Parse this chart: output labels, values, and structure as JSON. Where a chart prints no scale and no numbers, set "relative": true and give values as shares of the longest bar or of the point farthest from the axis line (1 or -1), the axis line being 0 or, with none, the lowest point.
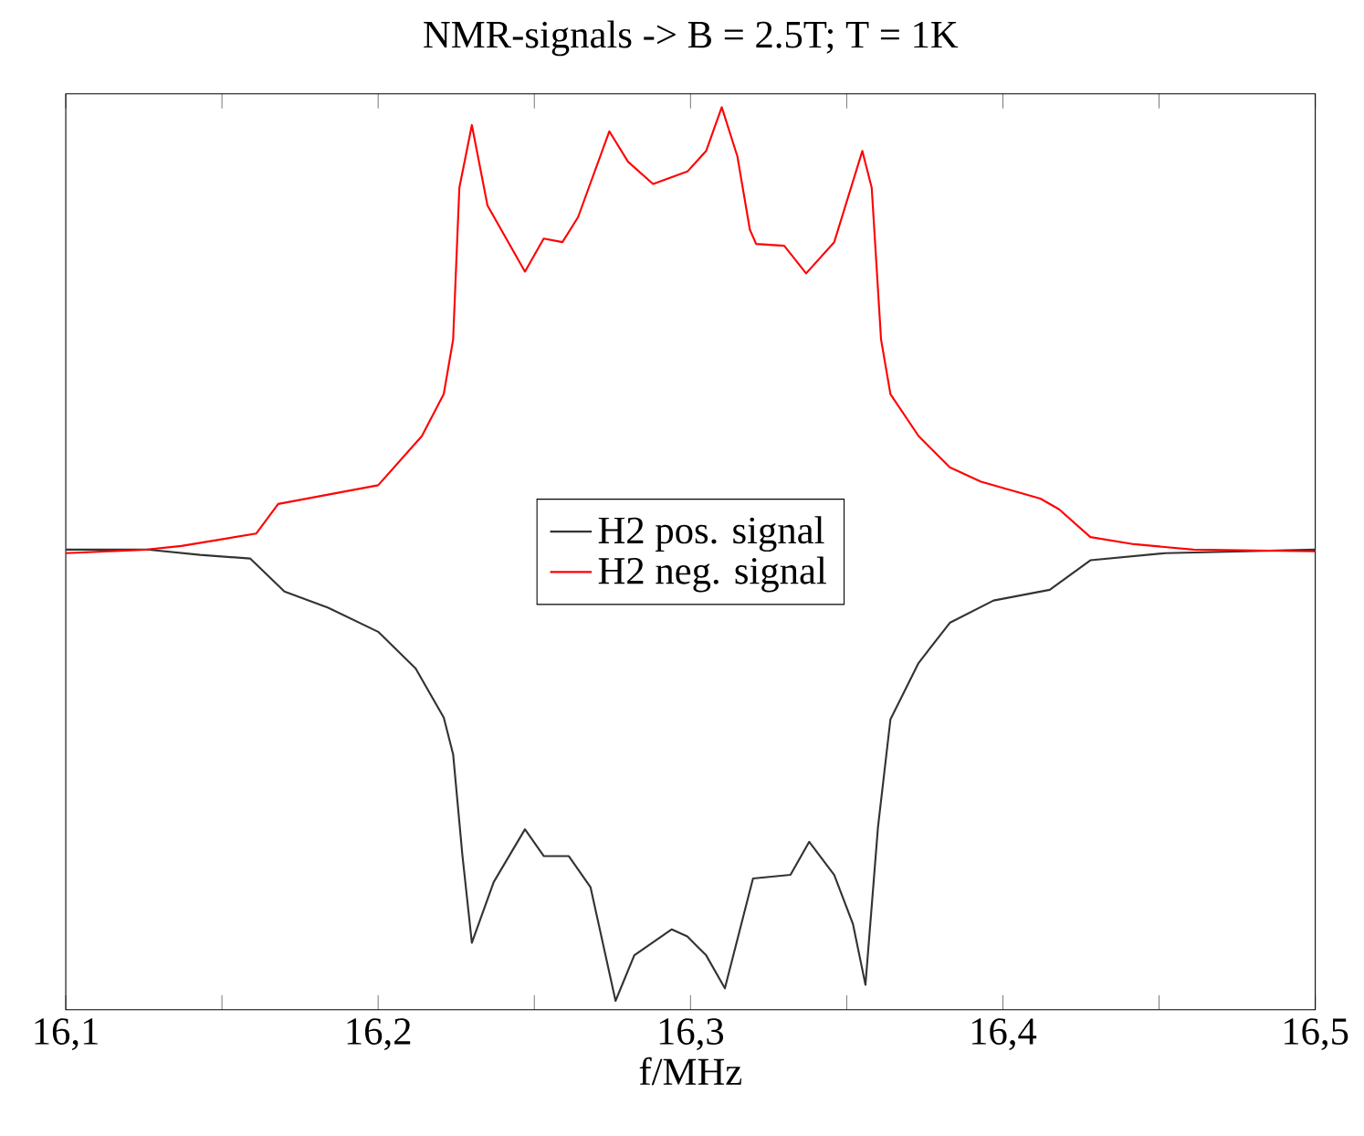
{
  "chart_data": {
    "type": "line",
    "title": "NMR-signals  -> B = 2.5T; T = 1K",
    "xlabel": "f/MHz",
    "relative": true,
    "xlim": [
      16.1,
      16.5
    ],
    "xticks": [
      {
        "value": 16.1,
        "label": "16,1"
      },
      {
        "value": 16.15,
        "label": null
      },
      {
        "value": 16.2,
        "label": "16,2"
      },
      {
        "value": 16.25,
        "label": null
      },
      {
        "value": 16.3,
        "label": "16,3"
      },
      {
        "value": 16.35,
        "label": null
      },
      {
        "value": 16.4,
        "label": "16,4"
      },
      {
        "value": 16.45,
        "label": null
      },
      {
        "value": 16.5,
        "label": "16,5"
      }
    ],
    "tick_labels": "x",
    "grid": false,
    "legend": "center",
    "marker": "none",
    "line_style": "solid",
    "series": [
      {
        "name": "H2 pos. signal",
        "color": "#333333",
        "x": [
          16.1,
          16.126,
          16.143,
          16.159,
          16.17,
          16.184,
          16.2,
          16.212,
          16.221,
          16.224,
          16.227,
          16.23,
          16.237,
          16.247,
          16.253,
          16.261,
          16.268,
          16.276,
          16.282,
          16.294,
          16.299,
          16.305,
          16.311,
          16.32,
          16.332,
          16.338,
          16.346,
          16.352,
          16.356,
          16.36,
          16.364,
          16.373,
          16.383,
          16.397,
          16.415,
          16.428,
          16.452,
          16.5
        ],
        "values": [
          0.505,
          0.505,
          0.499,
          0.495,
          0.458,
          0.44,
          0.413,
          0.372,
          0.317,
          0.276,
          0.162,
          0.065,
          0.133,
          0.192,
          0.162,
          0.162,
          0.127,
          0.0,
          0.051,
          0.08,
          0.072,
          0.051,
          0.014,
          0.137,
          0.141,
          0.178,
          0.141,
          0.086,
          0.018,
          0.194,
          0.315,
          0.378,
          0.423,
          0.448,
          0.46,
          0.493,
          0.501,
          0.505
        ]
      },
      {
        "name": "H2 neg.  signal",
        "color": "#ff0000",
        "x": [
          16.1,
          16.126,
          16.137,
          16.161,
          16.168,
          16.2,
          16.214,
          16.221,
          16.224,
          16.226,
          16.23,
          16.235,
          16.247,
          16.253,
          16.259,
          16.264,
          16.274,
          16.28,
          16.288,
          16.299,
          16.305,
          16.31,
          16.315,
          16.319,
          16.321,
          16.33,
          16.337,
          16.346,
          16.355,
          16.358,
          16.361,
          16.364,
          16.373,
          16.383,
          16.393,
          16.412,
          16.418,
          16.428,
          16.442,
          16.461,
          16.5
        ],
        "values": [
          0.501,
          0.505,
          0.509,
          0.523,
          0.556,
          0.577,
          0.632,
          0.679,
          0.74,
          0.91,
          0.98,
          0.89,
          0.816,
          0.853,
          0.849,
          0.877,
          0.973,
          0.939,
          0.914,
          0.928,
          0.951,
          1.0,
          0.945,
          0.863,
          0.847,
          0.845,
          0.814,
          0.849,
          0.951,
          0.91,
          0.74,
          0.679,
          0.632,
          0.597,
          0.581,
          0.562,
          0.55,
          0.519,
          0.511,
          0.505,
          0.503
        ]
      }
    ]
  }
}
